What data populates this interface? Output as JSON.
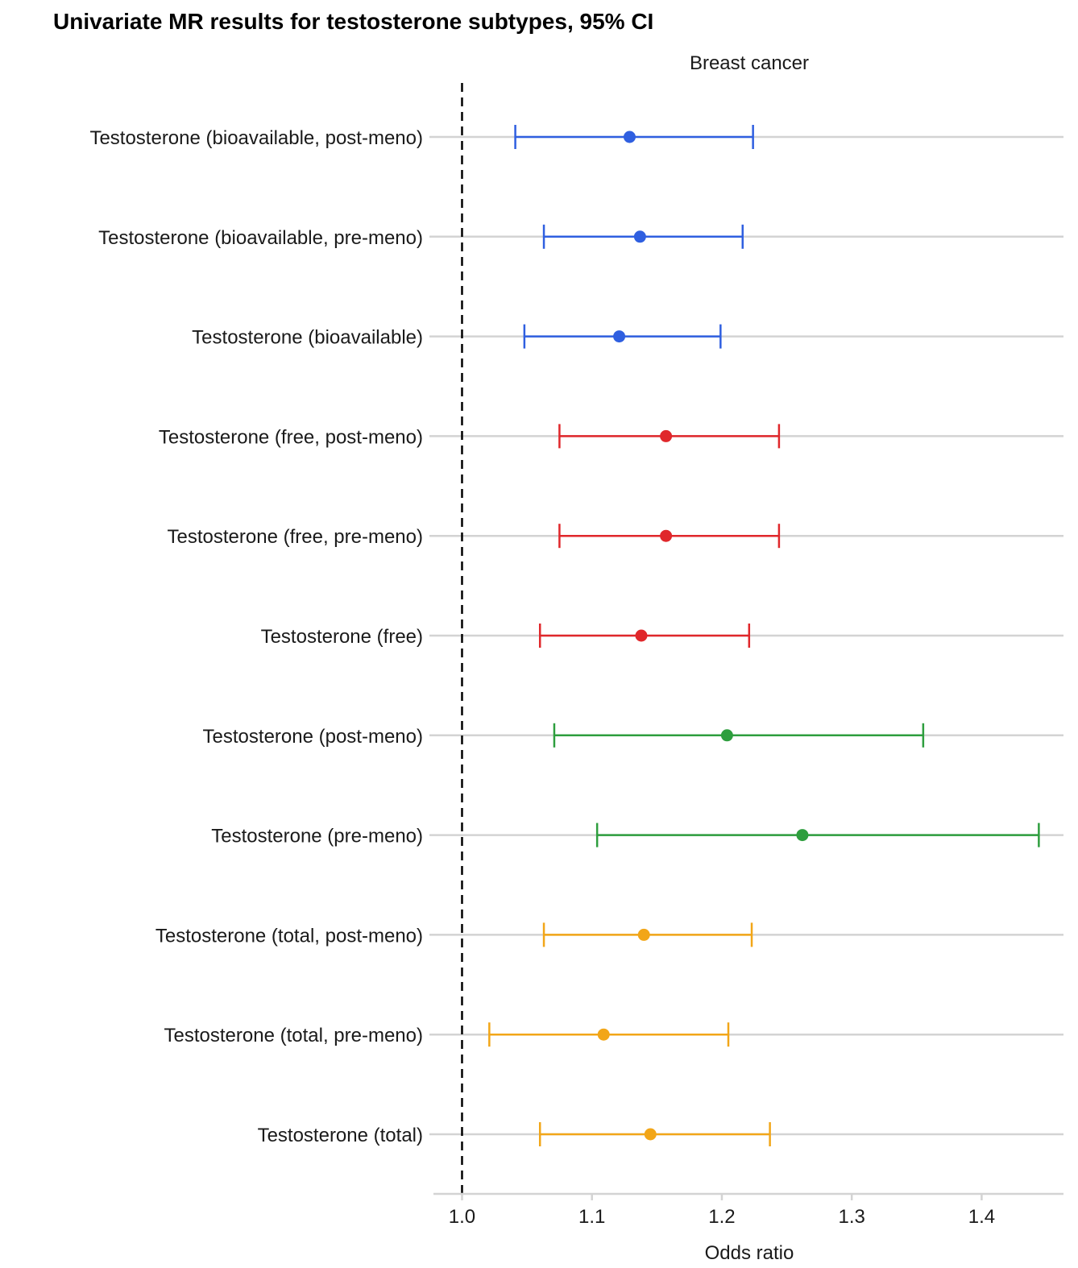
{
  "chart_data": {
    "type": "forest",
    "title": "Univariate MR results for testosterone subtypes, 95% CI",
    "facet_label": "Breast cancer",
    "xlabel": "Odds ratio",
    "xlim": [
      0.978,
      1.463
    ],
    "xticks": [
      1.0,
      1.1,
      1.2,
      1.3,
      1.4
    ],
    "xtick_labels": [
      "1.0",
      "1.1",
      "1.2",
      "1.3",
      "1.4"
    ],
    "reference_line": 1.0,
    "grid": "horizontal",
    "legend": "none",
    "rows": [
      {
        "label": "Testosterone (bioavailable, post-meno)",
        "or": 1.129,
        "lower": 1.041,
        "upper": 1.224,
        "color": "#2f5fe0"
      },
      {
        "label": "Testosterone (bioavailable, pre-meno)",
        "or": 1.137,
        "lower": 1.063,
        "upper": 1.216,
        "color": "#2f5fe0"
      },
      {
        "label": "Testosterone (bioavailable)",
        "or": 1.121,
        "lower": 1.048,
        "upper": 1.199,
        "color": "#2f5fe0"
      },
      {
        "label": "Testosterone (free, post-meno)",
        "or": 1.157,
        "lower": 1.075,
        "upper": 1.244,
        "color": "#e0272b"
      },
      {
        "label": "Testosterone (free, pre-meno)",
        "or": 1.157,
        "lower": 1.075,
        "upper": 1.244,
        "color": "#e0272b"
      },
      {
        "label": "Testosterone (free)",
        "or": 1.138,
        "lower": 1.06,
        "upper": 1.221,
        "color": "#e0272b"
      },
      {
        "label": "Testosterone (post-meno)",
        "or": 1.204,
        "lower": 1.071,
        "upper": 1.355,
        "color": "#2e9e3e"
      },
      {
        "label": "Testosterone (pre-meno)",
        "or": 1.262,
        "lower": 1.104,
        "upper": 1.444,
        "color": "#2e9e3e"
      },
      {
        "label": "Testosterone (total, post-meno)",
        "or": 1.14,
        "lower": 1.063,
        "upper": 1.223,
        "color": "#f2a618"
      },
      {
        "label": "Testosterone (total, pre-meno)",
        "or": 1.109,
        "lower": 1.021,
        "upper": 1.205,
        "color": "#f2a618"
      },
      {
        "label": "Testosterone (total)",
        "or": 1.145,
        "lower": 1.06,
        "upper": 1.237,
        "color": "#f2a618"
      }
    ]
  }
}
